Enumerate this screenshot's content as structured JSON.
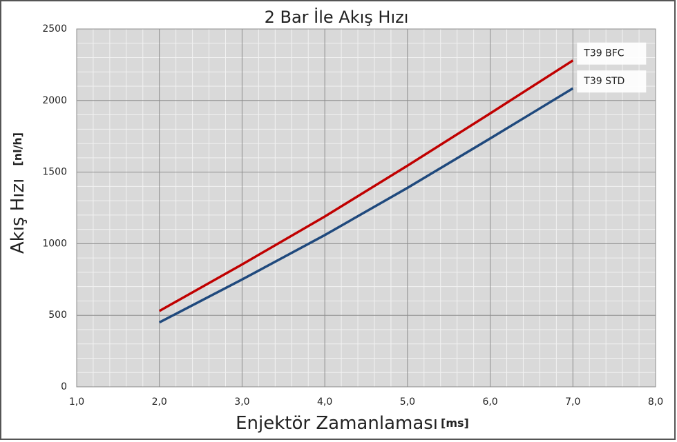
{
  "chart_data": {
    "type": "line",
    "title": "2 Bar İle Akış Hızı",
    "x_label": "Enjektör Zamanlaması",
    "x_unit": "[ms]",
    "y_label": "Akış Hızı",
    "y_unit": "[nl/h]",
    "x": [
      2,
      3,
      4,
      5,
      6,
      7
    ],
    "series": [
      {
        "name": "T39 BFC",
        "color": "#c00000",
        "values": [
          530,
          855,
          1190,
          1545,
          1910,
          2280
        ]
      },
      {
        "name": "T39 STD",
        "color": "#1f497d",
        "values": [
          450,
          750,
          1060,
          1390,
          1735,
          2085
        ]
      }
    ],
    "xlim": [
      1,
      8
    ],
    "xticks": [
      {
        "value": 1,
        "label": "1,0"
      },
      {
        "value": 2,
        "label": "2,0"
      },
      {
        "value": 3,
        "label": "3,0"
      },
      {
        "value": 4,
        "label": "4,0"
      },
      {
        "value": 5,
        "label": "5,0"
      },
      {
        "value": 6,
        "label": "6,0"
      },
      {
        "value": 7,
        "label": "7,0"
      },
      {
        "value": 8,
        "label": "8,0"
      }
    ],
    "ylim": [
      0,
      2500
    ],
    "yticks": [
      0,
      500,
      1000,
      1500,
      2000,
      2500
    ],
    "grid": true
  }
}
